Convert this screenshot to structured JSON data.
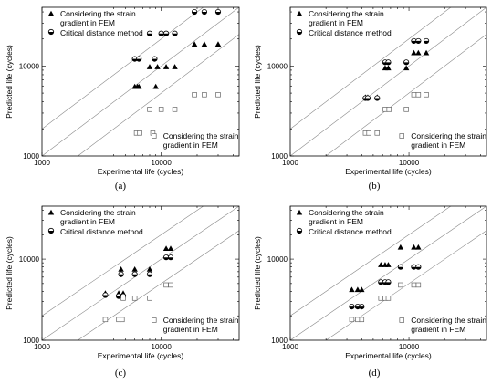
{
  "chart_data": [
    {
      "type": "scatter",
      "panel_label": "(a)",
      "xlabel": "Experimental life (cycles)",
      "ylabel": "Predicted life (cycles)",
      "xscale": "log",
      "yscale": "log",
      "xlim": [
        1000,
        45000
      ],
      "ylim": [
        1000,
        45000
      ],
      "xticks": [
        "1000",
        "10000"
      ],
      "yticks": [
        "1000",
        "10000"
      ],
      "legend_top": {
        "placement": "top-left",
        "entries": [
          "Considering the strain gradient in FEM",
          "Critical distance method"
        ]
      },
      "legend_bottom": {
        "placement": "bottom-right",
        "entries": [
          "Considering the strain gradient in FEM"
        ]
      },
      "series": [
        {
          "name": "Considering the strain gradient in FEM",
          "marker": "triangle",
          "points": [
            [
              6000,
              5900
            ],
            [
              6300,
              5900
            ],
            [
              6500,
              5900
            ],
            [
              8000,
              9800
            ],
            [
              9000,
              5900
            ],
            [
              9300,
              9800
            ],
            [
              11000,
              9800
            ],
            [
              13000,
              9800
            ],
            [
              19000,
              17500
            ],
            [
              23000,
              17500
            ],
            [
              30000,
              17500
            ]
          ]
        },
        {
          "name": "Critical distance method",
          "marker": "half-circle",
          "points": [
            [
              6000,
              12000
            ],
            [
              6500,
              12000
            ],
            [
              8000,
              23000
            ],
            [
              8800,
              12000
            ],
            [
              10000,
              23000
            ],
            [
              11000,
              23000
            ],
            [
              13000,
              23000
            ],
            [
              19000,
              40000
            ],
            [
              23000,
              40000
            ],
            [
              30000,
              40000
            ]
          ]
        },
        {
          "name": "Considering the strain gradient in FEM",
          "marker": "open-square",
          "points": [
            [
              6200,
              1800
            ],
            [
              6600,
              1800
            ],
            [
              8500,
              1800
            ],
            [
              8000,
              3300
            ],
            [
              10000,
              3300
            ],
            [
              13000,
              3300
            ],
            [
              19000,
              4800
            ],
            [
              23000,
              4800
            ],
            [
              30000,
              4800
            ]
          ]
        }
      ],
      "reference_lines": [
        0.5,
        1,
        2
      ]
    },
    {
      "type": "scatter",
      "panel_label": "(b)",
      "xlabel": "Experimental life (cycles)",
      "ylabel": "Predicted life (cycles)",
      "xscale": "log",
      "yscale": "log",
      "xlim": [
        1000,
        45000
      ],
      "ylim": [
        1000,
        45000
      ],
      "xticks": [
        "1000",
        "10000"
      ],
      "yticks": [
        "1000",
        "10000"
      ],
      "legend_top": {
        "placement": "top-left",
        "entries": [
          "Considering the strain gradient in FEM",
          "Critical distance method"
        ]
      },
      "legend_bottom": {
        "placement": "bottom-right",
        "entries": [
          "Considering the strain gradient in FEM"
        ]
      },
      "series": [
        {
          "name": "Considering the strain gradient in FEM",
          "marker": "triangle",
          "points": [
            [
              4300,
              4500
            ],
            [
              4500,
              4500
            ],
            [
              5400,
              4500
            ],
            [
              6300,
              9500
            ],
            [
              6700,
              9500
            ],
            [
              9500,
              9500
            ],
            [
              11000,
              14000
            ],
            [
              12000,
              14000
            ],
            [
              14000,
              14000
            ]
          ]
        },
        {
          "name": "Critical distance method",
          "marker": "half-circle",
          "points": [
            [
              4300,
              4400
            ],
            [
              4500,
              4400
            ],
            [
              5400,
              4400
            ],
            [
              6300,
              11000
            ],
            [
              6700,
              11000
            ],
            [
              9500,
              11000
            ],
            [
              11000,
              19000
            ],
            [
              12000,
              19000
            ],
            [
              14000,
              19000
            ]
          ]
        },
        {
          "name": "Considering the strain gradient in FEM",
          "marker": "open-square",
          "points": [
            [
              4300,
              1800
            ],
            [
              4600,
              1800
            ],
            [
              5400,
              1800
            ],
            [
              6300,
              3300
            ],
            [
              6800,
              3300
            ],
            [
              9500,
              3300
            ],
            [
              11000,
              4800
            ],
            [
              12000,
              4800
            ],
            [
              14000,
              4800
            ]
          ]
        }
      ],
      "reference_lines": [
        0.5,
        1,
        2
      ]
    },
    {
      "type": "scatter",
      "panel_label": "(c)",
      "xlabel": "Experimental life (cycles)",
      "ylabel": "Predicted life (cycles)",
      "xscale": "log",
      "yscale": "log",
      "xlim": [
        1000,
        45000
      ],
      "ylim": [
        1000,
        45000
      ],
      "xticks": [
        "1000",
        "10000"
      ],
      "yticks": [
        "1000",
        "10000"
      ],
      "legend_top": {
        "placement": "top-left",
        "entries": [
          "Considering the strain gradient in FEM",
          "Critical distance method"
        ]
      },
      "legend_bottom": {
        "placement": "bottom-right",
        "entries": [
          "Considering the strain gradient in FEM"
        ]
      },
      "series": [
        {
          "name": "Considering the strain gradient in FEM",
          "marker": "triangle",
          "points": [
            [
              3400,
              3800
            ],
            [
              4400,
              3800
            ],
            [
              4600,
              7500
            ],
            [
              4800,
              3800
            ],
            [
              6000,
              7500
            ],
            [
              8000,
              7500
            ],
            [
              11000,
              13500
            ],
            [
              12000,
              13500
            ]
          ]
        },
        {
          "name": "Critical distance method",
          "marker": "half-circle",
          "points": [
            [
              3400,
              3600
            ],
            [
              4400,
              3500
            ],
            [
              4600,
              6500
            ],
            [
              4800,
              3500
            ],
            [
              6000,
              6500
            ],
            [
              8000,
              6500
            ],
            [
              11000,
              10500
            ],
            [
              12000,
              10500
            ]
          ]
        },
        {
          "name": "Considering the strain gradient in FEM",
          "marker": "open-square",
          "points": [
            [
              3400,
              1800
            ],
            [
              4400,
              1800
            ],
            [
              4700,
              1800
            ],
            [
              4800,
              3300
            ],
            [
              6000,
              3300
            ],
            [
              8000,
              3300
            ],
            [
              11000,
              4800
            ],
            [
              12000,
              4800
            ]
          ]
        }
      ],
      "reference_lines": [
        0.5,
        1,
        2
      ]
    },
    {
      "type": "scatter",
      "panel_label": "(d)",
      "xlabel": "Experimental life (cycles)",
      "ylabel": "Predicted life (cycles)",
      "xscale": "log",
      "yscale": "log",
      "xlim": [
        1000,
        45000
      ],
      "ylim": [
        1000,
        45000
      ],
      "xticks": [
        "1000",
        "10000"
      ],
      "yticks": [
        "1000",
        "10000"
      ],
      "legend_top": {
        "placement": "top-left",
        "entries": [
          "Considering the strain gradient in FEM",
          "Critical distance method"
        ]
      },
      "legend_bottom": {
        "placement": "bottom-right",
        "entries": [
          "Considering the strain gradient in FEM"
        ]
      },
      "series": [
        {
          "name": "Considering the strain gradient in FEM",
          "marker": "triangle",
          "points": [
            [
              3300,
              4200
            ],
            [
              3700,
              4200
            ],
            [
              4000,
              4200
            ],
            [
              5800,
              8500
            ],
            [
              6300,
              8500
            ],
            [
              6700,
              8500
            ],
            [
              8500,
              14000
            ],
            [
              11000,
              14000
            ],
            [
              12000,
              14000
            ]
          ]
        },
        {
          "name": "Critical distance method",
          "marker": "half-circle",
          "points": [
            [
              3300,
              2600
            ],
            [
              3700,
              2600
            ],
            [
              4000,
              2600
            ],
            [
              5800,
              5200
            ],
            [
              6300,
              5200
            ],
            [
              6700,
              5200
            ],
            [
              8500,
              8000
            ],
            [
              11000,
              8000
            ],
            [
              12000,
              8000
            ]
          ]
        },
        {
          "name": "Considering the strain gradient in FEM",
          "marker": "open-square",
          "points": [
            [
              3300,
              1800
            ],
            [
              3700,
              1800
            ],
            [
              4000,
              1800
            ],
            [
              5800,
              3300
            ],
            [
              6300,
              3300
            ],
            [
              6700,
              3300
            ],
            [
              8500,
              4800
            ],
            [
              11000,
              4800
            ],
            [
              12000,
              4800
            ]
          ]
        }
      ],
      "reference_lines": [
        0.5,
        1,
        2
      ]
    }
  ]
}
